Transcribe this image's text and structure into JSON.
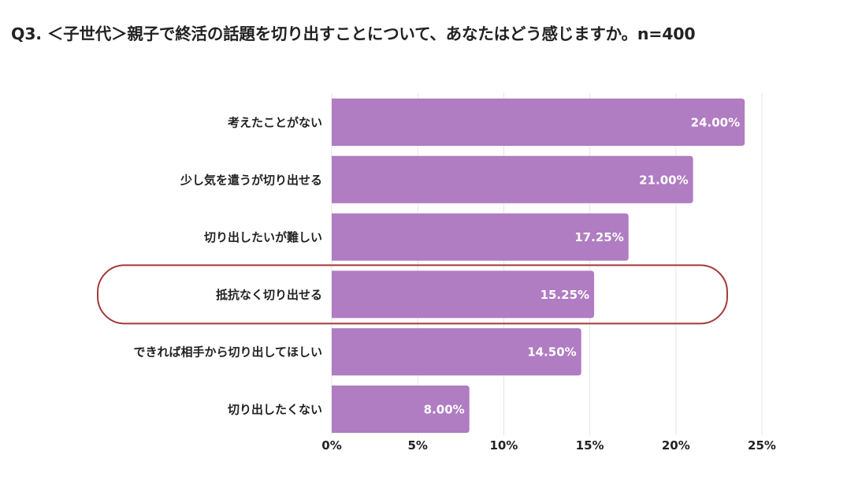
{
  "title": "Q3. ＜子世代＞親子で終活の話題を切り出すことについて、あなたはどう感じますか。n=400",
  "colors": {
    "bar": "#b07cc2",
    "value_label": "#ffffff",
    "grid": "#e6e6e6",
    "highlight_outline": "#a43a3a"
  },
  "chart_data": {
    "type": "bar",
    "orientation": "horizontal",
    "categories": [
      "考えたことがない",
      "少し気を遣うが切り出せる",
      "切り出したいが難しい",
      "抵抗なく切り出せる",
      "できれば相手から切り出してほしい",
      "切り出したくない"
    ],
    "values": [
      24.0,
      21.0,
      17.25,
      15.25,
      14.5,
      8.0
    ],
    "value_labels": [
      "24.00%",
      "21.00%",
      "17.25%",
      "15.25%",
      "14.50%",
      "8.00%"
    ],
    "x_ticks": [
      0,
      5,
      10,
      15,
      20,
      25
    ],
    "x_tick_labels": [
      "0%",
      "5%",
      "10%",
      "15%",
      "20%",
      "25%"
    ],
    "xlim": [
      0,
      25
    ],
    "grid": true,
    "highlighted_category": "抵抗なく切り出せる"
  }
}
